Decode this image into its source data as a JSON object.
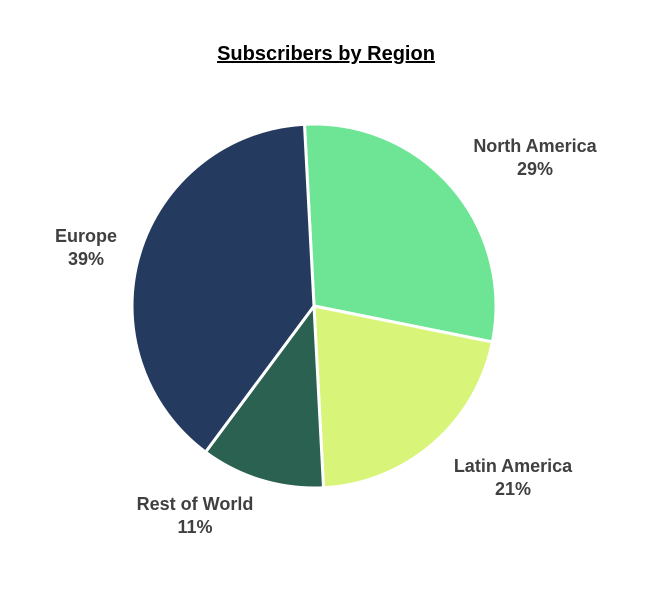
{
  "chart_data": {
    "type": "pie",
    "title": "Subscribers by Region",
    "slices": [
      {
        "label": "North America",
        "value": 29,
        "value_label": "29%",
        "color": "#6ee594"
      },
      {
        "label": "Latin America",
        "value": 21,
        "value_label": "21%",
        "color": "#d8f57a"
      },
      {
        "label": "Rest of World",
        "value": 11,
        "value_label": "11%",
        "color": "#2a6150"
      },
      {
        "label": "Europe",
        "value": 39,
        "value_label": "39%",
        "color": "#243a5e"
      }
    ],
    "legend": "none",
    "slice_border_color": "#ffffff"
  }
}
